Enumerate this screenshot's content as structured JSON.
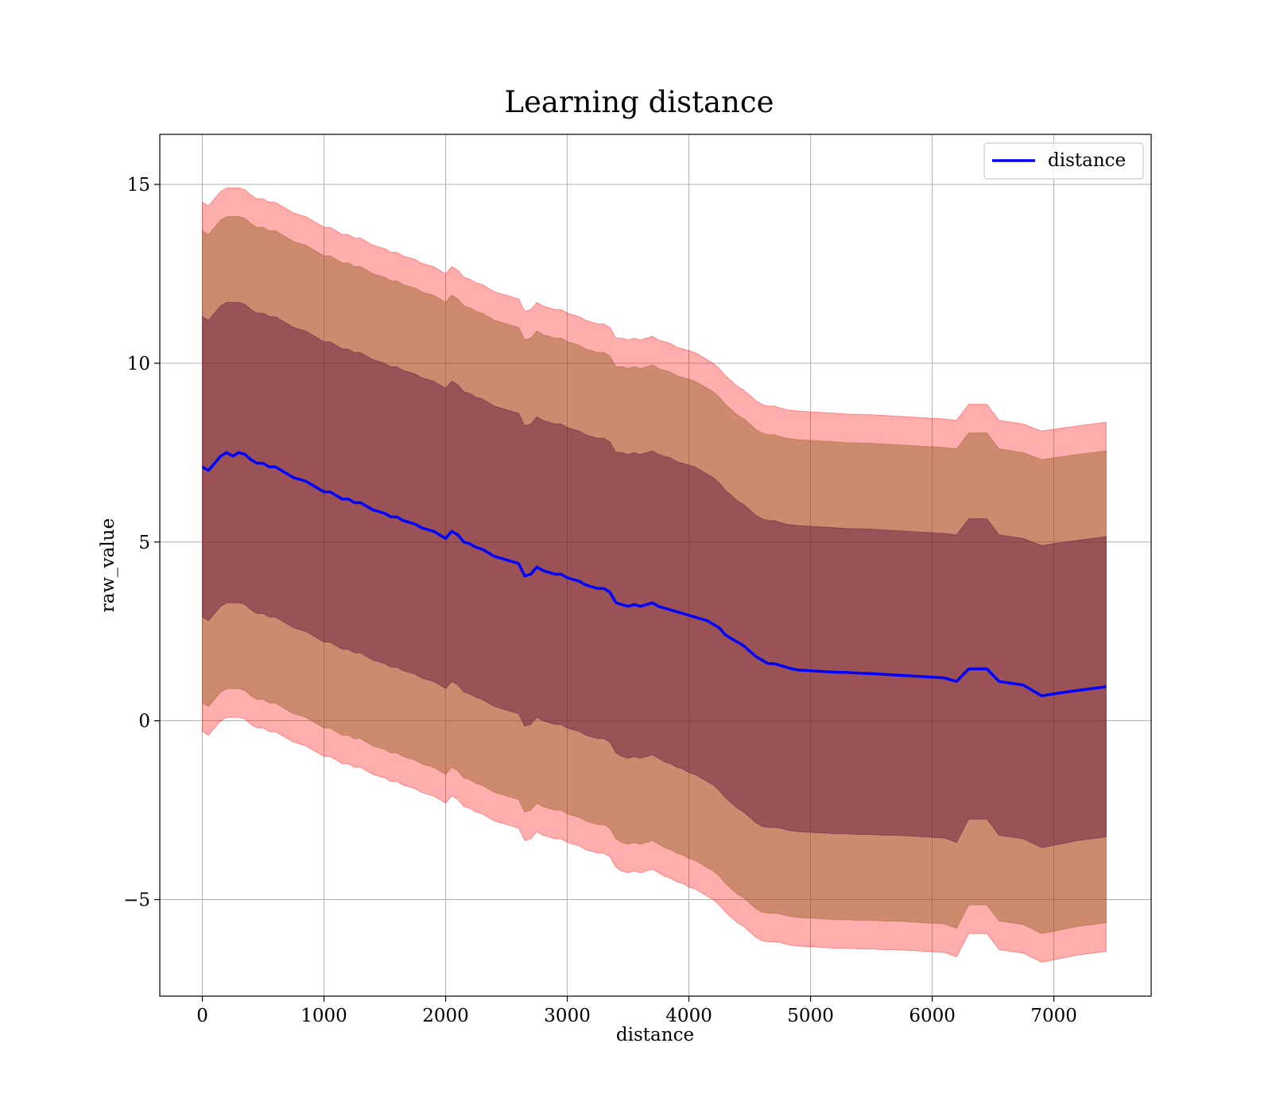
{
  "chart_data": {
    "type": "area",
    "title": "Learning distance",
    "xlabel": "distance",
    "ylabel": "raw_value",
    "xlim": [
      -350,
      7800
    ],
    "ylim": [
      -7.7,
      16.4
    ],
    "xticks": [
      0,
      1000,
      2000,
      3000,
      4000,
      5000,
      6000,
      7000
    ],
    "xtick_labels": [
      "0",
      "1000",
      "2000",
      "3000",
      "4000",
      "5000",
      "6000",
      "7000"
    ],
    "yticks": [
      -5,
      0,
      5,
      10,
      15
    ],
    "ytick_labels": [
      "−5",
      "0",
      "5",
      "10",
      "15"
    ],
    "grid": true,
    "legend": {
      "position": "top-right",
      "entries": [
        "distance"
      ]
    },
    "colors": {
      "line": "#0000ff",
      "band_outer": "#ff0000",
      "band_middle": "#8b5a1a",
      "band_inner": "#5a0e3a"
    },
    "series": [
      {
        "name": "distance",
        "x": [
          0,
          50,
          100,
          150,
          200,
          250,
          300,
          350,
          400,
          450,
          500,
          550,
          600,
          650,
          700,
          750,
          800,
          850,
          900,
          950,
          1000,
          1050,
          1100,
          1150,
          1200,
          1250,
          1300,
          1350,
          1400,
          1450,
          1500,
          1550,
          1600,
          1650,
          1700,
          1750,
          1800,
          1850,
          1900,
          1950,
          2000,
          2050,
          2100,
          2150,
          2200,
          2250,
          2300,
          2350,
          2400,
          2450,
          2500,
          2550,
          2600,
          2650,
          2700,
          2750,
          2800,
          2850,
          2900,
          2950,
          3000,
          3050,
          3100,
          3150,
          3200,
          3250,
          3300,
          3350,
          3400,
          3450,
          3500,
          3550,
          3600,
          3650,
          3700,
          3750,
          3800,
          3850,
          3900,
          3950,
          4000,
          4050,
          4100,
          4150,
          4200,
          4250,
          4300,
          4350,
          4400,
          4450,
          4500,
          4550,
          4600,
          4650,
          4700,
          4750,
          4800,
          4850,
          4900,
          5000,
          5100,
          5200,
          5300,
          5400,
          5500,
          5600,
          5700,
          5800,
          5900,
          6000,
          6100,
          6200,
          6300,
          6450,
          6550,
          6750,
          6900,
          7050,
          7200,
          7430
        ],
        "mean": [
          7.1,
          7.0,
          7.2,
          7.4,
          7.5,
          7.4,
          7.5,
          7.45,
          7.3,
          7.2,
          7.2,
          7.1,
          7.1,
          7.0,
          6.9,
          6.8,
          6.75,
          6.7,
          6.6,
          6.5,
          6.4,
          6.4,
          6.3,
          6.2,
          6.2,
          6.1,
          6.1,
          6.0,
          5.9,
          5.85,
          5.8,
          5.7,
          5.7,
          5.6,
          5.55,
          5.5,
          5.4,
          5.35,
          5.3,
          5.2,
          5.1,
          5.3,
          5.2,
          5.0,
          4.95,
          4.85,
          4.8,
          4.7,
          4.6,
          4.55,
          4.5,
          4.45,
          4.4,
          4.05,
          4.1,
          4.3,
          4.2,
          4.15,
          4.1,
          4.1,
          4.0,
          3.95,
          3.9,
          3.8,
          3.75,
          3.7,
          3.7,
          3.6,
          3.3,
          3.25,
          3.2,
          3.25,
          3.2,
          3.25,
          3.3,
          3.2,
          3.15,
          3.1,
          3.05,
          3.0,
          2.95,
          2.9,
          2.85,
          2.8,
          2.7,
          2.6,
          2.4,
          2.3,
          2.2,
          2.1,
          1.95,
          1.8,
          1.7,
          1.6,
          1.6,
          1.55,
          1.5,
          1.45,
          1.42,
          1.4,
          1.38,
          1.36,
          1.35,
          1.33,
          1.32,
          1.3,
          1.28,
          1.26,
          1.24,
          1.22,
          1.2,
          1.1,
          1.45,
          1.45,
          1.1,
          1.0,
          0.7,
          0.78,
          0.85,
          0.95
        ],
        "inner_lower": [
          2.9,
          2.8,
          3.0,
          3.2,
          3.3,
          3.3,
          3.3,
          3.25,
          3.1,
          3.0,
          3.0,
          2.9,
          2.9,
          2.8,
          2.7,
          2.6,
          2.55,
          2.5,
          2.4,
          2.3,
          2.2,
          2.2,
          2.1,
          2.0,
          2.0,
          1.9,
          1.9,
          1.8,
          1.7,
          1.65,
          1.6,
          1.5,
          1.5,
          1.4,
          1.35,
          1.3,
          1.2,
          1.15,
          1.1,
          1.0,
          0.9,
          1.1,
          1.0,
          0.8,
          0.75,
          0.65,
          0.6,
          0.5,
          0.4,
          0.35,
          0.3,
          0.25,
          0.2,
          -0.15,
          -0.1,
          0.1,
          0.0,
          -0.05,
          -0.1,
          -0.1,
          -0.2,
          -0.25,
          -0.3,
          -0.4,
          -0.45,
          -0.5,
          -0.5,
          -0.6,
          -0.9,
          -1.0,
          -1.05,
          -1.0,
          -1.05,
          -1.0,
          -0.95,
          -1.05,
          -1.15,
          -1.2,
          -1.3,
          -1.35,
          -1.45,
          -1.5,
          -1.6,
          -1.7,
          -1.8,
          -1.95,
          -2.15,
          -2.3,
          -2.45,
          -2.55,
          -2.7,
          -2.85,
          -2.95,
          -2.98,
          -2.98,
          -3.0,
          -3.05,
          -3.08,
          -3.1,
          -3.12,
          -3.14,
          -3.16,
          -3.16,
          -3.18,
          -3.18,
          -3.2,
          -3.2,
          -3.22,
          -3.24,
          -3.26,
          -3.28,
          -3.4,
          -2.75,
          -2.75,
          -3.2,
          -3.3,
          -3.55,
          -3.45,
          -3.35,
          -3.25
        ],
        "inner_upper": [
          11.3,
          11.2,
          11.4,
          11.6,
          11.7,
          11.7,
          11.7,
          11.65,
          11.5,
          11.4,
          11.4,
          11.3,
          11.3,
          11.2,
          11.1,
          11.0,
          10.95,
          10.9,
          10.8,
          10.7,
          10.6,
          10.6,
          10.5,
          10.4,
          10.4,
          10.3,
          10.3,
          10.2,
          10.1,
          10.05,
          10.0,
          9.9,
          9.9,
          9.8,
          9.75,
          9.7,
          9.6,
          9.55,
          9.5,
          9.4,
          9.3,
          9.5,
          9.4,
          9.2,
          9.15,
          9.05,
          9.0,
          8.9,
          8.8,
          8.75,
          8.7,
          8.65,
          8.6,
          8.25,
          8.3,
          8.5,
          8.4,
          8.35,
          8.3,
          8.3,
          8.2,
          8.15,
          8.1,
          8.0,
          7.95,
          7.9,
          7.9,
          7.8,
          7.5,
          7.5,
          7.45,
          7.5,
          7.45,
          7.5,
          7.55,
          7.45,
          7.4,
          7.35,
          7.25,
          7.2,
          7.15,
          7.1,
          7.0,
          6.9,
          6.8,
          6.65,
          6.45,
          6.3,
          6.15,
          6.05,
          5.9,
          5.75,
          5.65,
          5.6,
          5.6,
          5.55,
          5.5,
          5.48,
          5.46,
          5.44,
          5.42,
          5.4,
          5.38,
          5.37,
          5.36,
          5.34,
          5.32,
          5.3,
          5.28,
          5.26,
          5.24,
          5.2,
          5.65,
          5.65,
          5.2,
          5.1,
          4.9,
          4.98,
          5.05,
          5.15
        ],
        "middle_lower": [
          0.5,
          0.4,
          0.6,
          0.8,
          0.9,
          0.9,
          0.9,
          0.85,
          0.7,
          0.6,
          0.6,
          0.5,
          0.5,
          0.4,
          0.3,
          0.2,
          0.15,
          0.1,
          0.0,
          -0.1,
          -0.2,
          -0.2,
          -0.3,
          -0.4,
          -0.4,
          -0.5,
          -0.5,
          -0.6,
          -0.7,
          -0.75,
          -0.8,
          -0.9,
          -0.9,
          -1.0,
          -1.05,
          -1.1,
          -1.2,
          -1.25,
          -1.3,
          -1.4,
          -1.5,
          -1.3,
          -1.4,
          -1.6,
          -1.65,
          -1.75,
          -1.8,
          -1.9,
          -2.0,
          -2.05,
          -2.1,
          -2.15,
          -2.2,
          -2.55,
          -2.5,
          -2.3,
          -2.4,
          -2.45,
          -2.5,
          -2.5,
          -2.6,
          -2.65,
          -2.7,
          -2.8,
          -2.85,
          -2.9,
          -2.9,
          -3.0,
          -3.3,
          -3.4,
          -3.45,
          -3.4,
          -3.45,
          -3.4,
          -3.35,
          -3.45,
          -3.55,
          -3.6,
          -3.7,
          -3.75,
          -3.85,
          -3.9,
          -4.0,
          -4.1,
          -4.2,
          -4.35,
          -4.55,
          -4.7,
          -4.85,
          -4.95,
          -5.1,
          -5.25,
          -5.35,
          -5.38,
          -5.38,
          -5.4,
          -5.45,
          -5.48,
          -5.5,
          -5.52,
          -5.54,
          -5.56,
          -5.56,
          -5.58,
          -5.58,
          -5.6,
          -5.6,
          -5.62,
          -5.64,
          -5.66,
          -5.68,
          -5.8,
          -5.15,
          -5.15,
          -5.6,
          -5.7,
          -5.95,
          -5.85,
          -5.75,
          -5.65
        ],
        "middle_upper": [
          13.7,
          13.6,
          13.8,
          14.0,
          14.1,
          14.1,
          14.1,
          14.05,
          13.9,
          13.8,
          13.8,
          13.7,
          13.7,
          13.6,
          13.5,
          13.4,
          13.35,
          13.3,
          13.2,
          13.1,
          13.0,
          13.0,
          12.9,
          12.8,
          12.8,
          12.7,
          12.7,
          12.6,
          12.5,
          12.45,
          12.4,
          12.3,
          12.3,
          12.2,
          12.15,
          12.1,
          12.0,
          11.95,
          11.9,
          11.8,
          11.7,
          11.9,
          11.8,
          11.6,
          11.55,
          11.45,
          11.4,
          11.3,
          11.2,
          11.15,
          11.1,
          11.05,
          11.0,
          10.65,
          10.7,
          10.9,
          10.8,
          10.75,
          10.7,
          10.7,
          10.6,
          10.55,
          10.5,
          10.4,
          10.35,
          10.3,
          10.3,
          10.2,
          9.9,
          9.9,
          9.85,
          9.9,
          9.85,
          9.9,
          9.95,
          9.85,
          9.8,
          9.75,
          9.65,
          9.6,
          9.55,
          9.5,
          9.4,
          9.3,
          9.2,
          9.05,
          8.85,
          8.7,
          8.55,
          8.45,
          8.3,
          8.15,
          8.05,
          8.0,
          8.0,
          7.95,
          7.9,
          7.88,
          7.86,
          7.84,
          7.82,
          7.8,
          7.78,
          7.77,
          7.76,
          7.74,
          7.72,
          7.7,
          7.68,
          7.66,
          7.64,
          7.6,
          8.05,
          8.05,
          7.6,
          7.5,
          7.3,
          7.38,
          7.45,
          7.55
        ],
        "outer_lower": [
          -0.3,
          -0.4,
          -0.2,
          0.0,
          0.1,
          0.1,
          0.1,
          0.05,
          -0.1,
          -0.2,
          -0.2,
          -0.3,
          -0.3,
          -0.4,
          -0.5,
          -0.6,
          -0.65,
          -0.7,
          -0.8,
          -0.9,
          -1.0,
          -1.0,
          -1.1,
          -1.2,
          -1.2,
          -1.3,
          -1.3,
          -1.4,
          -1.5,
          -1.55,
          -1.6,
          -1.7,
          -1.7,
          -1.8,
          -1.85,
          -1.9,
          -2.0,
          -2.05,
          -2.1,
          -2.2,
          -2.3,
          -2.1,
          -2.2,
          -2.4,
          -2.45,
          -2.55,
          -2.6,
          -2.7,
          -2.8,
          -2.85,
          -2.9,
          -2.95,
          -3.0,
          -3.35,
          -3.3,
          -3.1,
          -3.2,
          -3.25,
          -3.3,
          -3.3,
          -3.4,
          -3.45,
          -3.5,
          -3.6,
          -3.65,
          -3.7,
          -3.7,
          -3.8,
          -4.1,
          -4.2,
          -4.25,
          -4.2,
          -4.25,
          -4.2,
          -4.15,
          -4.25,
          -4.35,
          -4.4,
          -4.5,
          -4.55,
          -4.65,
          -4.7,
          -4.8,
          -4.9,
          -5.0,
          -5.15,
          -5.35,
          -5.5,
          -5.65,
          -5.75,
          -5.9,
          -6.05,
          -6.15,
          -6.18,
          -6.18,
          -6.2,
          -6.25,
          -6.28,
          -6.3,
          -6.32,
          -6.34,
          -6.36,
          -6.36,
          -6.38,
          -6.38,
          -6.4,
          -6.4,
          -6.42,
          -6.44,
          -6.46,
          -6.48,
          -6.6,
          -5.95,
          -5.95,
          -6.4,
          -6.5,
          -6.75,
          -6.65,
          -6.55,
          -6.45
        ],
        "outer_upper": [
          14.5,
          14.4,
          14.6,
          14.8,
          14.9,
          14.9,
          14.9,
          14.85,
          14.7,
          14.6,
          14.6,
          14.5,
          14.5,
          14.4,
          14.3,
          14.2,
          14.15,
          14.1,
          14.0,
          13.9,
          13.8,
          13.8,
          13.7,
          13.6,
          13.6,
          13.5,
          13.5,
          13.4,
          13.3,
          13.25,
          13.2,
          13.1,
          13.1,
          13.0,
          12.95,
          12.9,
          12.8,
          12.75,
          12.7,
          12.6,
          12.5,
          12.7,
          12.6,
          12.4,
          12.35,
          12.25,
          12.2,
          12.1,
          12.0,
          11.95,
          11.9,
          11.85,
          11.8,
          11.45,
          11.5,
          11.7,
          11.6,
          11.55,
          11.5,
          11.5,
          11.4,
          11.35,
          11.3,
          11.2,
          11.15,
          11.1,
          11.1,
          11.0,
          10.7,
          10.7,
          10.65,
          10.7,
          10.65,
          10.7,
          10.75,
          10.65,
          10.6,
          10.55,
          10.45,
          10.4,
          10.35,
          10.3,
          10.2,
          10.1,
          10.0,
          9.85,
          9.65,
          9.5,
          9.35,
          9.25,
          9.1,
          8.95,
          8.85,
          8.8,
          8.8,
          8.75,
          8.7,
          8.68,
          8.66,
          8.64,
          8.62,
          8.6,
          8.58,
          8.57,
          8.56,
          8.54,
          8.52,
          8.5,
          8.48,
          8.46,
          8.44,
          8.4,
          8.85,
          8.85,
          8.4,
          8.3,
          8.1,
          8.18,
          8.25,
          8.35
        ]
      }
    ]
  }
}
